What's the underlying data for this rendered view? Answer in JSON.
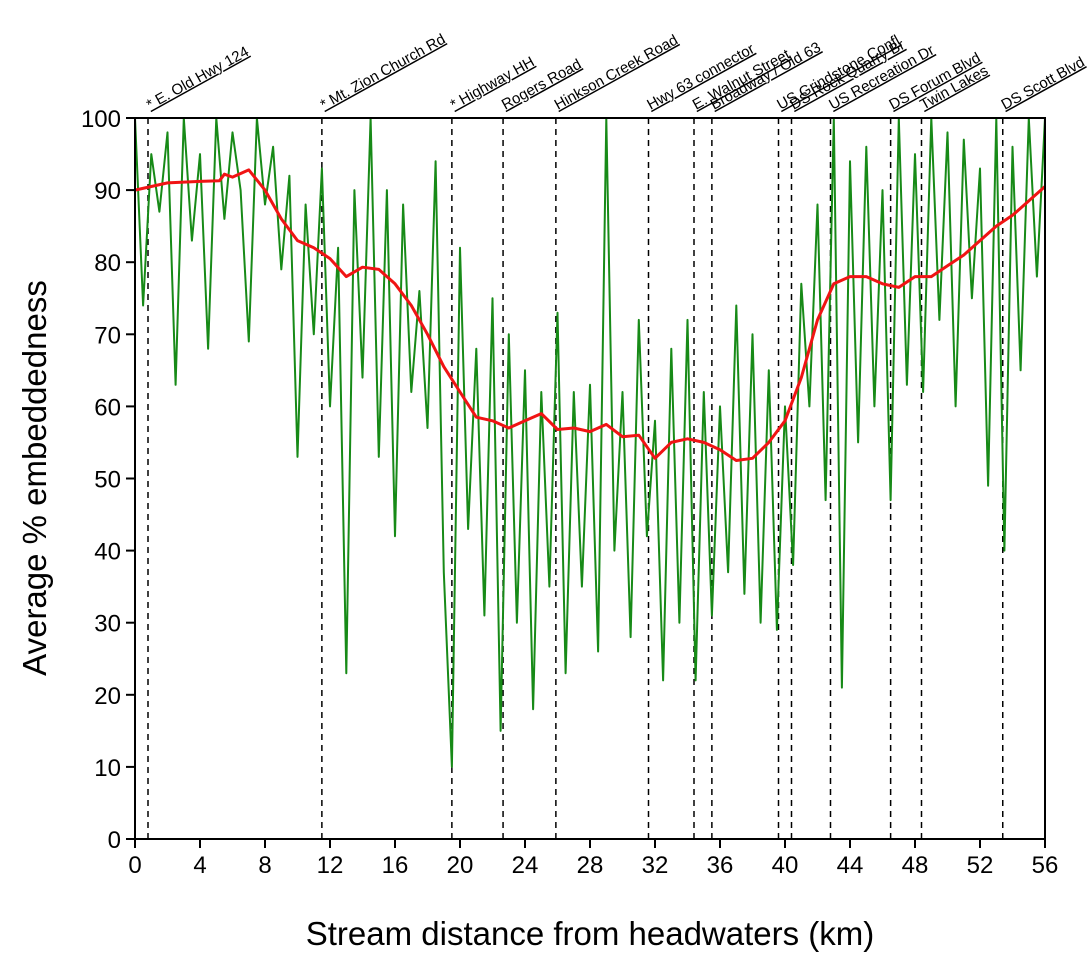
{
  "chart_data": {
    "type": "line",
    "xlabel": "Stream distance from headwaters (km)",
    "ylabel": "Average % embeddedness",
    "xlim": [
      0,
      56
    ],
    "ylim": [
      0,
      100
    ],
    "xticks": [
      0,
      4,
      8,
      12,
      16,
      20,
      24,
      28,
      32,
      36,
      40,
      44,
      48,
      52,
      56
    ],
    "yticks": [
      0,
      10,
      20,
      30,
      40,
      50,
      60,
      70,
      80,
      90,
      100
    ],
    "series": [
      {
        "color": "#178a17",
        "x": [
          0,
          0.5,
          1,
          1.5,
          2,
          2.5,
          3,
          3.5,
          4,
          4.5,
          5,
          5.5,
          6,
          6.5,
          7,
          7.5,
          8,
          8.5,
          9,
          9.5,
          10,
          10.5,
          11,
          11.5,
          12,
          12.5,
          13,
          13.5,
          14,
          14.5,
          15,
          15.5,
          16,
          16.5,
          17,
          17.5,
          18,
          18.5,
          19,
          19.5,
          20,
          20.5,
          21,
          21.5,
          22,
          22.5,
          23,
          23.5,
          24,
          24.5,
          25,
          25.5,
          26,
          26.5,
          27,
          27.5,
          28,
          28.5,
          29,
          29.5,
          30,
          30.5,
          31,
          31.5,
          32,
          32.5,
          33,
          33.5,
          34,
          34.5,
          35,
          35.5,
          36,
          36.5,
          37,
          37.5,
          38,
          38.5,
          39,
          39.5,
          40,
          40.5,
          41,
          41.5,
          42,
          42.5,
          43,
          43.5,
          44,
          44.5,
          45,
          45.5,
          46,
          46.5,
          47,
          47.5,
          48,
          48.5,
          49,
          49.5,
          50,
          50.5,
          51,
          51.5,
          52,
          52.5,
          53,
          53.5,
          54,
          54.5,
          55,
          55.5,
          56
        ],
        "values": [
          100,
          74,
          95,
          87,
          98,
          63,
          100,
          83,
          95,
          68,
          100,
          86,
          98,
          90,
          69,
          100,
          88,
          96,
          79,
          92,
          53,
          88,
          70,
          93,
          60,
          82,
          23,
          90,
          64,
          100,
          53,
          90,
          42,
          88,
          62,
          76,
          57,
          94,
          37,
          10,
          82,
          43,
          68,
          31,
          75,
          15,
          70,
          30,
          65,
          18,
          62,
          35,
          73,
          23,
          62,
          35,
          63,
          26,
          100,
          40,
          62,
          28,
          72,
          42,
          58,
          22,
          68,
          30,
          72,
          22,
          62,
          31,
          60,
          37,
          74,
          34,
          70,
          30,
          65,
          29,
          60,
          38,
          77,
          60,
          88,
          47,
          100,
          21,
          94,
          55,
          96,
          60,
          90,
          47,
          100,
          63,
          95,
          62,
          100,
          72,
          98,
          60,
          97,
          75,
          93,
          49,
          100,
          40,
          96,
          65,
          100,
          78,
          100
        ]
      },
      {
        "color": "#f01414",
        "x": [
          0,
          2,
          4,
          5.2,
          5.5,
          6,
          7,
          8,
          9,
          10,
          11,
          12,
          13,
          14,
          15,
          16,
          17,
          18,
          19,
          20,
          21,
          22,
          23,
          24,
          25,
          26,
          27,
          28,
          29,
          30,
          31,
          32,
          33,
          34,
          35,
          36,
          37,
          38,
          39,
          40,
          41,
          42,
          43,
          44,
          45,
          46,
          47,
          48,
          49,
          50,
          51,
          52,
          53,
          54,
          55,
          56
        ],
        "values": [
          90,
          91,
          91.2,
          91.3,
          92.2,
          91.8,
          92.8,
          90,
          86,
          83,
          82,
          80.5,
          78,
          79.3,
          79,
          77,
          74,
          70,
          65.5,
          62,
          58.5,
          58,
          57,
          58,
          59,
          56.8,
          57,
          56.5,
          57.5,
          55.8,
          56,
          52.8,
          55,
          55.5,
          55,
          54,
          52.5,
          52.8,
          55,
          58,
          64,
          72,
          77,
          78,
          78,
          77,
          76.5,
          78,
          78,
          79.5,
          81,
          83,
          85,
          86.5,
          88.5,
          90.5
        ]
      }
    ],
    "markers": [
      {
        "x": 0.8,
        "label": "* E. Old Hwy 124"
      },
      {
        "x": 11.5,
        "label": "* Mt. Zion Church Rd"
      },
      {
        "x": 19.5,
        "label": "* Highway HH"
      },
      {
        "x": 22.65,
        "label": "Rogers Road"
      },
      {
        "x": 25.9,
        "label": "Hinkson Creek Road"
      },
      {
        "x": 31.6,
        "label": "Hwy 63 connector"
      },
      {
        "x": 34.4,
        "label": "E. Walnut Street"
      },
      {
        "x": 35.5,
        "label": "Broadway / Old 63"
      },
      {
        "x": 39.6,
        "label": "US Grindstone Confl"
      },
      {
        "x": 40.4,
        "label": "DS Rock Quarry Br"
      },
      {
        "x": 42.8,
        "label": "US Recreation Dr"
      },
      {
        "x": 46.5,
        "label": "DS Forum Blvd"
      },
      {
        "x": 48.4,
        "label": "Twin Lakes"
      },
      {
        "x": 53.4,
        "label": "DS Scott Blvd"
      }
    ]
  }
}
